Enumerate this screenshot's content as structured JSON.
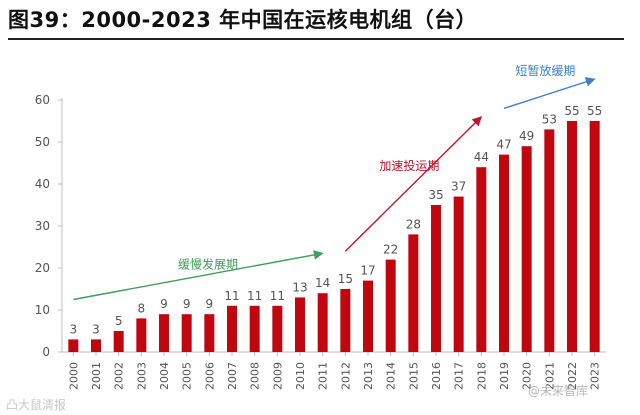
{
  "title": "图39：2000-2023 年中国在运核电机组（台）",
  "watermark_left": "凸大鼠清报",
  "watermark_right": "@未来智库",
  "colors": {
    "bar": "#c0070f",
    "axis": "#bfbfbf",
    "text": "#555555",
    "arrow_green": "#3f9f5a",
    "arrow_red": "#c8102e",
    "arrow_blue": "#3f7fd0"
  },
  "chart_data": {
    "type": "bar",
    "categories": [
      "2000",
      "2001",
      "2002",
      "2003",
      "2004",
      "2005",
      "2006",
      "2007",
      "2008",
      "2009",
      "2010",
      "2011",
      "2012",
      "2013",
      "2014",
      "2015",
      "2016",
      "2017",
      "2018",
      "2019",
      "2020",
      "2021",
      "2022",
      "2023"
    ],
    "values": [
      3,
      3,
      5,
      8,
      9,
      9,
      9,
      11,
      11,
      11,
      13,
      14,
      15,
      17,
      22,
      28,
      35,
      37,
      44,
      47,
      49,
      53,
      55,
      55
    ],
    "ylim": [
      0,
      60
    ],
    "yticks": [
      0,
      10,
      20,
      30,
      40,
      50,
      60
    ],
    "grid": false,
    "data_labels": true,
    "annotations": [
      {
        "label": "缓慢发展期",
        "color": "arrow_green",
        "from_year": "2000",
        "from_value": 12.5,
        "to_year": "2011",
        "to_value": 23.5
      },
      {
        "label": "加速投运期",
        "color": "arrow_red",
        "from_year": "2012",
        "from_value": 24,
        "to_year": "2018",
        "to_value": 56
      },
      {
        "label": "短暂放缓期",
        "color": "arrow_blue",
        "from_year": "2019",
        "from_value": 58,
        "to_year": "2023",
        "to_value": 65
      }
    ]
  }
}
